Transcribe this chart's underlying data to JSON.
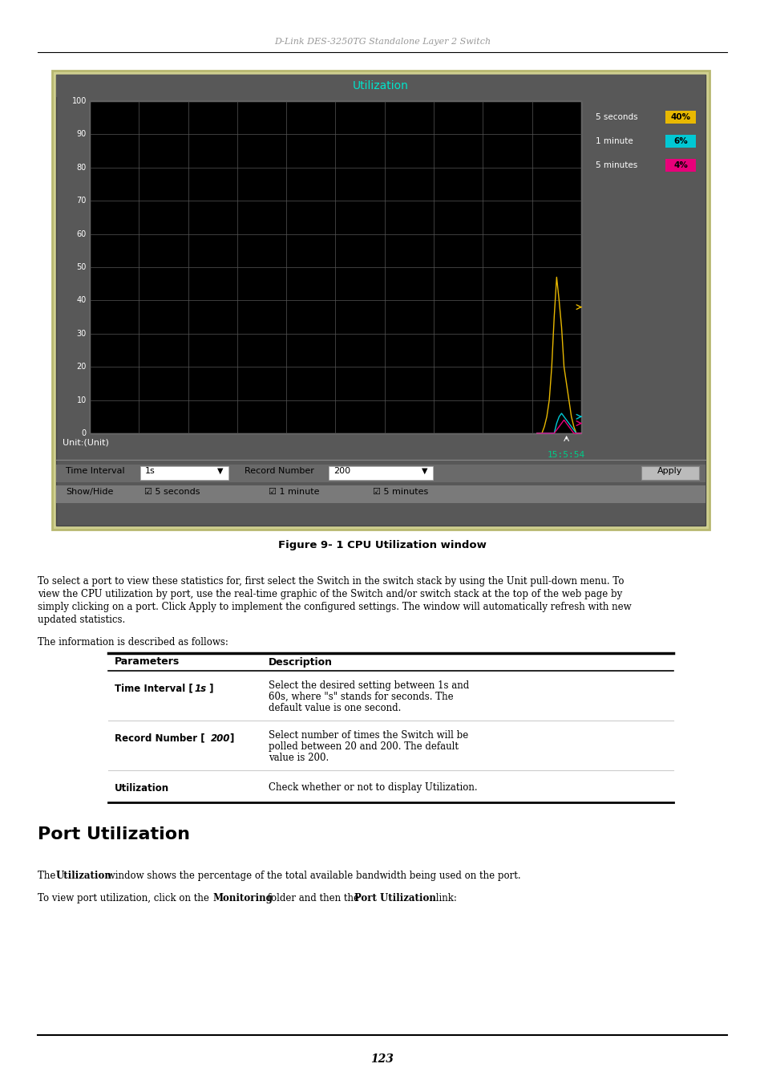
{
  "page_width": 9.54,
  "page_height": 13.51,
  "dpi": 100,
  "header_text": "D-Link DES-3250TG Standalone Layer 2 Switch",
  "figure_caption": "Figure 9- 1 CPU Utilization window",
  "section_title": "Port Utilization",
  "paragraph_info": "The information is described as follows:",
  "port_util_para1_plain": "The ",
  "port_util_para1_bold": "Utilization",
  "port_util_para1_rest": " window shows the percentage of the total available bandwidth being used on the port.",
  "port_util_para2_pre": "To view port utilization, click on the ",
  "port_util_para2_b1": "Monitoring",
  "port_util_para2_mid": " folder and then the ",
  "port_util_para2_b2": "Port Utilization",
  "port_util_para2_end": " link:",
  "page_number": "123",
  "chart_title": "Utilization",
  "chart_title_color": "#00e5cc",
  "chart_bg": "#000000",
  "chart_panel_bg": "#555555",
  "chart_grid_color": "#555555",
  "chart_border_color": "#888888",
  "chart_yticks": [
    0,
    10,
    20,
    30,
    40,
    50,
    60,
    70,
    80,
    90,
    100
  ],
  "legend_5s_label": "5 seconds",
  "legend_5s_value": "40%",
  "legend_5s_color": "#e8b800",
  "legend_1m_label": "1 minute",
  "legend_1m_value": "6%",
  "legend_1m_color": "#00c8d4",
  "legend_5m_label": "5 minutes",
  "legend_5m_value": "4%",
  "legend_5m_color": "#e8007a",
  "time_label": "15:5:54",
  "time_color": "#00cc88",
  "outer_frame_color": "#c8c89a",
  "panel_bg": "#585858",
  "toolbar_bg": "#666666",
  "unit_text": "Unit:(Unit)",
  "toolbar_row1_labels": [
    "Time Interval",
    "1s",
    "Record Number",
    "200",
    "Apply"
  ],
  "toolbar_row2_labels": [
    "Show/Hide",
    "5 seconds",
    "1 minute",
    "5 minutes"
  ]
}
